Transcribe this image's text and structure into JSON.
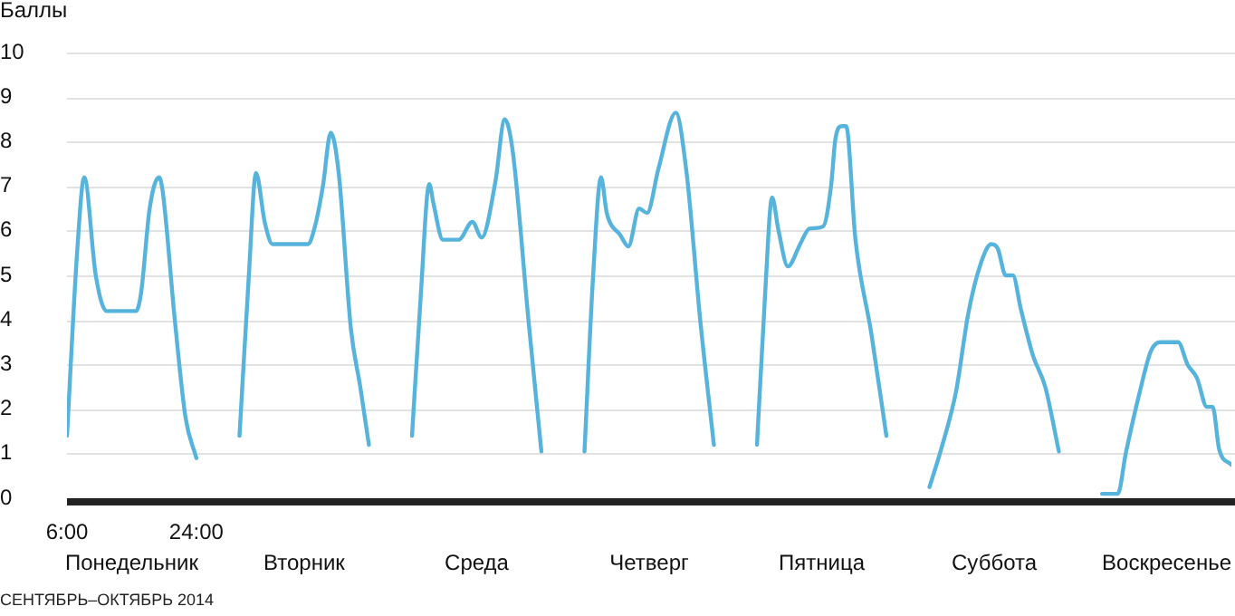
{
  "chart_data": {
    "type": "line",
    "ylabel": "Баллы",
    "marker": "none",
    "grid": "y",
    "annotations": [
      "Понедельник",
      "Вторник",
      "Среда",
      "Четверг",
      "Пятница",
      "Суббота",
      "Воскресенье",
      "СЕНТЯБРЬ–ОКТЯБРЬ 2014"
    ],
    "xlim": [
      6,
      168
    ],
    "xticks": [
      {
        "value": 6,
        "label": "6:00"
      },
      {
        "value": 24,
        "label": "24:00"
      }
    ],
    "ylim": [
      0,
      10
    ],
    "yticks": [
      0,
      1,
      2,
      3,
      4,
      5,
      6,
      7,
      8,
      9,
      10
    ],
    "series": [
      {
        "color": "#56b4dc",
        "x": [
          6,
          7.4,
          8.4,
          10,
          11.5,
          15.6,
          16.3,
          17.5,
          18.8,
          19.3,
          21,
          22.5,
          24
        ],
        "values": [
          1.4,
          5.5,
          7.2,
          5,
          4.2,
          4.2,
          4.6,
          6.5,
          7.2,
          6.9,
          4,
          1.8,
          0.9
        ]
      },
      {
        "color": "#56b4dc",
        "x": [
          30,
          31.3,
          32.3,
          33.5,
          34.6,
          39.5,
          40.5,
          41.6,
          42.7,
          43.8,
          45.5,
          46.8,
          48
        ],
        "values": [
          1.4,
          5,
          7.3,
          6.2,
          5.7,
          5.7,
          6.1,
          7,
          8.2,
          7.3,
          3.8,
          2.5,
          1.2
        ]
      },
      {
        "color": "#56b4dc",
        "x": [
          54,
          55.2,
          56.4,
          57,
          58.3,
          60.5,
          62.4,
          63.7,
          65.6,
          66.9,
          68,
          70.2,
          72
        ],
        "values": [
          1.4,
          4.5,
          7.05,
          6.6,
          5.8,
          5.8,
          6.2,
          5.85,
          7.1,
          8.5,
          7.8,
          4,
          1.05
        ]
      },
      {
        "color": "#56b4dc",
        "x": [
          78,
          79.2,
          80.3,
          81.1,
          83,
          84.1,
          85.6,
          86.7,
          88.3,
          90.7,
          92.2,
          94.1,
          96
        ],
        "values": [
          1.05,
          5,
          7.2,
          6.4,
          5.9,
          5.65,
          6.5,
          6.4,
          7.4,
          8.65,
          7.3,
          4,
          1.2
        ]
      },
      {
        "color": "#56b4dc",
        "x": [
          102,
          103.1,
          104.1,
          105,
          106.3,
          108,
          109.3,
          111.2,
          112.3,
          112.9,
          113.8,
          114.4,
          115.7,
          117.9,
          120
        ],
        "values": [
          1.2,
          4.5,
          6.75,
          6,
          5.2,
          5.7,
          6.05,
          6.1,
          7,
          8.05,
          8.35,
          8.35,
          5.8,
          3.7,
          1.4
        ]
      },
      {
        "color": "#56b4dc",
        "x": [
          126,
          127.8,
          129.7,
          131.4,
          133.1,
          134.6,
          135.5,
          136.6,
          137.6,
          138.7,
          140.4,
          142.1,
          144
        ],
        "values": [
          0.25,
          1.2,
          2.4,
          4.15,
          5.25,
          5.7,
          5.6,
          5,
          5,
          4.25,
          3.2,
          2.5,
          1.05
        ]
      },
      {
        "color": "#56b4dc",
        "x": [
          150,
          152.2,
          153.3,
          155.2,
          156.8,
          158.1,
          160.6,
          161.9,
          163.2,
          164.6,
          165.4,
          166.3,
          168
        ],
        "values": [
          0.1,
          0.1,
          1,
          2.35,
          3.3,
          3.5,
          3.5,
          3,
          2.7,
          2.05,
          2.05,
          1.1,
          0.75
        ]
      }
    ]
  }
}
